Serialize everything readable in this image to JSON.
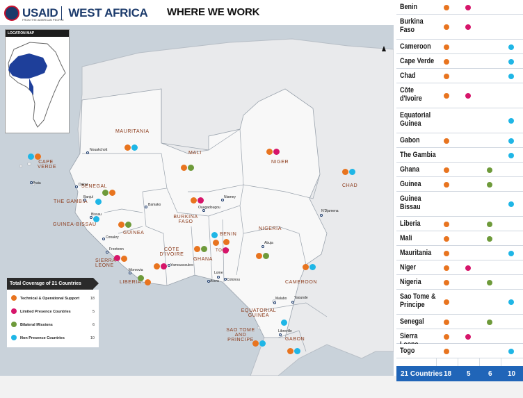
{
  "header": {
    "logo_usaid": "USAID",
    "logo_region": "WEST AFRICA",
    "logo_tagline": "FROM THE AMERICAN PEOPLE",
    "title": "WHERE WE WORK"
  },
  "location_map": {
    "title": "LOCATION MAP"
  },
  "legend": {
    "title": "Total Coverage of 21 Countries",
    "items": [
      {
        "label": "Technical & Operational Support",
        "count": "18",
        "color": "#e8741f"
      },
      {
        "label": "Limited Presence Countries",
        "count": "5",
        "color": "#d6156a"
      },
      {
        "label": "Bilateral Missions",
        "count": "6",
        "color": "#6e9a3a"
      },
      {
        "label": "Non Presence Countries",
        "count": "10",
        "color": "#1fb6e6"
      }
    ]
  },
  "map_labels": {
    "mauritania": "MAURITANIA",
    "mali": "MALI",
    "niger": "NIGER",
    "chad": "CHAD",
    "cape_verde": "CAPE VERDE",
    "senegal": "SENEGAL",
    "the_gambia": "THE GAMBIA",
    "guinea_bissau": "GUINEA-BISSAU",
    "guinea": "GUINEA",
    "burkina_faso": "BURKINA FASO",
    "benin": "BENIN",
    "nigeria": "NIGERIA",
    "togo": "TOGO",
    "ghana": "GHANA",
    "cote_divoire": "CÔTE D'IVOIRE",
    "sierra_leone": "SIERRA LEONE",
    "liberia": "LIBERIA",
    "cameroon": "CAMEROON",
    "equatorial_guinea": "EQUATORIAL GUINEA",
    "sao_tome": "SAO TOME AND PRINCIPE",
    "gabon": "GABON"
  },
  "cities": {
    "nouakchott": "Nouakchott",
    "praia": "Praia",
    "dakar": "Dakar",
    "banjul": "Banjul",
    "bissau": "Bissau",
    "conakry": "Conakry",
    "freetown": "Freetown",
    "monrovia": "Monrovia",
    "bamako": "Bamako",
    "ouagadougou": "Ouagadougou",
    "niamey": "Niamey",
    "ndjamena": "N'Djamena",
    "abuja": "Abuja",
    "yamoussoukro": "Yamoussoukro",
    "lome": "Lome",
    "accra": "Accra",
    "cotonou": "Cotonou",
    "malabo": "Malabo",
    "yaounde": "Yaounde",
    "libreville": "Libreville"
  },
  "table": {
    "rows": [
      {
        "country": "Benin",
        "cats": [
          "o",
          "m"
        ]
      },
      {
        "country": "Burkina Faso",
        "cats": [
          "o",
          "m"
        ]
      },
      {
        "country": "Cameroon",
        "cats": [
          "o",
          "b"
        ]
      },
      {
        "country": "Cape Verde",
        "cats": [
          "o",
          "b"
        ]
      },
      {
        "country": "Chad",
        "cats": [
          "o",
          "b"
        ]
      },
      {
        "country": "Côte d'Ivoire",
        "cats": [
          "o",
          "m"
        ]
      },
      {
        "country": "Equatorial Guinea",
        "cats": [
          "b"
        ]
      },
      {
        "country": "Gabon",
        "cats": [
          "o",
          "b"
        ]
      },
      {
        "country": "The Gambia",
        "cats": [
          "b"
        ]
      },
      {
        "country": "Ghana",
        "cats": [
          "o",
          "g"
        ]
      },
      {
        "country": "Guinea",
        "cats": [
          "o",
          "g"
        ]
      },
      {
        "country": "Guinea Bissau",
        "cats": [
          "b"
        ]
      },
      {
        "country": "Liberia",
        "cats": [
          "o",
          "g"
        ]
      },
      {
        "country": "Mali",
        "cats": [
          "o",
          "g"
        ]
      },
      {
        "country": "Mauritania",
        "cats": [
          "o",
          "b"
        ]
      },
      {
        "country": "Niger",
        "cats": [
          "o",
          "m"
        ]
      },
      {
        "country": "Nigeria",
        "cats": [
          "o",
          "g"
        ]
      },
      {
        "country": "Sao Tome & Principe",
        "cats": [
          "o",
          "b"
        ]
      },
      {
        "country": "Senegal",
        "cats": [
          "o",
          "g"
        ]
      },
      {
        "country": "Sierra Leone",
        "cats": [
          "o",
          "m"
        ]
      },
      {
        "country": "Togo",
        "cats": [
          "o",
          "b"
        ]
      }
    ],
    "totals": {
      "label": "21 Countries",
      "technical": "18",
      "limited": "5",
      "bilateral": "6",
      "non_presence": "10"
    }
  }
}
